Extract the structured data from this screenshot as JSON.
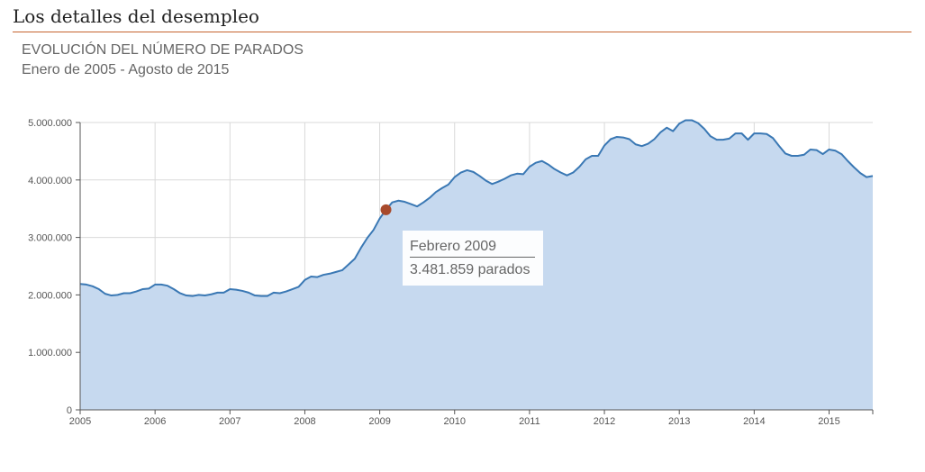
{
  "page": {
    "section_title": "Los detalles del desempleo"
  },
  "chart_data": {
    "type": "area",
    "title": "EVOLUCIÓN DEL NÚMERO DE PARADOS",
    "subtitle": "Enero de 2005 - Agosto de 2015",
    "xlabel": "",
    "ylabel": "",
    "xlim": [
      "2005-01",
      "2015-08"
    ],
    "ylim": [
      0,
      5000000
    ],
    "y_ticks": [
      {
        "value": 0,
        "label": "0"
      },
      {
        "value": 1000000,
        "label": "1.000.000"
      },
      {
        "value": 2000000,
        "label": "2.000.000"
      },
      {
        "value": 3000000,
        "label": "3.000.000"
      },
      {
        "value": 4000000,
        "label": "4.000.000"
      },
      {
        "value": 5000000,
        "label": "5.000.000"
      }
    ],
    "x_ticks": [
      "2005",
      "2006",
      "2007",
      "2008",
      "2009",
      "2010",
      "2011",
      "2012",
      "2013",
      "2014",
      "2015"
    ],
    "grid": true,
    "colors": {
      "line": "#3a78b4",
      "fill": "#c6d9ef",
      "grid": "#d9d9d9",
      "marker": "#a84a2c",
      "axis": "#555555"
    },
    "series": [
      {
        "x": [
          "2005-01",
          "2005-02",
          "2005-03",
          "2005-04",
          "2005-05",
          "2005-06",
          "2005-07",
          "2005-08",
          "2005-09",
          "2005-10",
          "2005-11",
          "2005-12",
          "2006-01",
          "2006-02",
          "2006-03",
          "2006-04",
          "2006-05",
          "2006-06",
          "2006-07",
          "2006-08",
          "2006-09",
          "2006-10",
          "2006-11",
          "2006-12",
          "2007-01",
          "2007-02",
          "2007-03",
          "2007-04",
          "2007-05",
          "2007-06",
          "2007-07",
          "2007-08",
          "2007-09",
          "2007-10",
          "2007-11",
          "2007-12",
          "2008-01",
          "2008-02",
          "2008-03",
          "2008-04",
          "2008-05",
          "2008-06",
          "2008-07",
          "2008-08",
          "2008-09",
          "2008-10",
          "2008-11",
          "2008-12",
          "2009-01",
          "2009-02",
          "2009-03",
          "2009-04",
          "2009-05",
          "2009-06",
          "2009-07",
          "2009-08",
          "2009-09",
          "2009-10",
          "2009-11",
          "2009-12",
          "2010-01",
          "2010-02",
          "2010-03",
          "2010-04",
          "2010-05",
          "2010-06",
          "2010-07",
          "2010-08",
          "2010-09",
          "2010-10",
          "2010-11",
          "2010-12",
          "2011-01",
          "2011-02",
          "2011-03",
          "2011-04",
          "2011-05",
          "2011-06",
          "2011-07",
          "2011-08",
          "2011-09",
          "2011-10",
          "2011-11",
          "2011-12",
          "2012-01",
          "2012-02",
          "2012-03",
          "2012-04",
          "2012-05",
          "2012-06",
          "2012-07",
          "2012-08",
          "2012-09",
          "2012-10",
          "2012-11",
          "2012-12",
          "2013-01",
          "2013-02",
          "2013-03",
          "2013-04",
          "2013-05",
          "2013-06",
          "2013-07",
          "2013-08",
          "2013-09",
          "2013-10",
          "2013-11",
          "2013-12",
          "2014-01",
          "2014-02",
          "2014-03",
          "2014-04",
          "2014-05",
          "2014-06",
          "2014-07",
          "2014-08",
          "2014-09",
          "2014-10",
          "2014-11",
          "2014-12",
          "2015-01",
          "2015-02",
          "2015-03",
          "2015-04",
          "2015-05",
          "2015-06",
          "2015-07",
          "2015-08"
        ],
        "values": [
          2190000,
          2180000,
          2150000,
          2100000,
          2020000,
          1990000,
          2000000,
          2030000,
          2030000,
          2060000,
          2100000,
          2110000,
          2180000,
          2180000,
          2160000,
          2100000,
          2030000,
          1990000,
          1980000,
          2000000,
          1990000,
          2010000,
          2040000,
          2040000,
          2100000,
          2090000,
          2070000,
          2040000,
          1990000,
          1980000,
          1980000,
          2040000,
          2030000,
          2060000,
          2100000,
          2140000,
          2260000,
          2320000,
          2310000,
          2350000,
          2370000,
          2400000,
          2430000,
          2530000,
          2630000,
          2820000,
          2990000,
          3130000,
          3330000,
          3481859,
          3610000,
          3640000,
          3620000,
          3580000,
          3540000,
          3610000,
          3690000,
          3790000,
          3860000,
          3920000,
          4050000,
          4130000,
          4170000,
          4140000,
          4070000,
          3990000,
          3930000,
          3970000,
          4020000,
          4080000,
          4110000,
          4100000,
          4230000,
          4300000,
          4330000,
          4270000,
          4190000,
          4130000,
          4080000,
          4130000,
          4230000,
          4360000,
          4420000,
          4420000,
          4600000,
          4710000,
          4750000,
          4740000,
          4710000,
          4620000,
          4590000,
          4630000,
          4710000,
          4830000,
          4910000,
          4850000,
          4980000,
          5040000,
          5040000,
          4990000,
          4890000,
          4760000,
          4700000,
          4700000,
          4720000,
          4810000,
          4810000,
          4700000,
          4810000,
          4810000,
          4800000,
          4730000,
          4590000,
          4460000,
          4420000,
          4420000,
          4440000,
          4530000,
          4520000,
          4450000,
          4530000,
          4510000,
          4450000,
          4330000,
          4220000,
          4120000,
          4050000,
          4070000
        ]
      }
    ],
    "highlight": {
      "x": "2009-02",
      "value": 3481859,
      "date_label": "Febrero 2009",
      "value_label": "3.481.859 parados"
    }
  }
}
